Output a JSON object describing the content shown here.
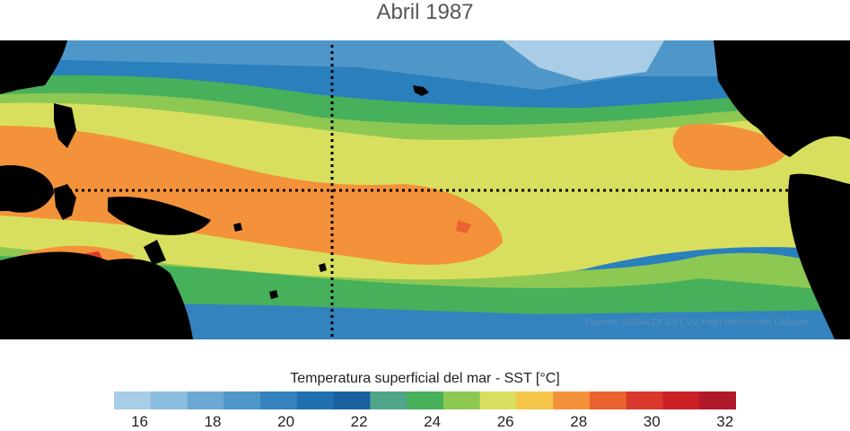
{
  "title": "Abril 1987",
  "source": "Fuente: NOAA OI SST V2 High Resolution Dataset",
  "colorbar": {
    "label": "Temperatura superficial del mar - SST  [°C]",
    "colors": [
      "#a9cde6",
      "#8bbddf",
      "#6ba9d4",
      "#4f97c9",
      "#3482be",
      "#1f70b0",
      "#19609e",
      "#4fa58a",
      "#47b05a",
      "#8dc853",
      "#d8df5e",
      "#f6c64a",
      "#f3923a",
      "#ea6230",
      "#d9382c",
      "#cc1f26",
      "#b2182b"
    ],
    "ticks": [
      "16",
      "18",
      "20",
      "22",
      "24",
      "26",
      "28",
      "30",
      "32"
    ]
  },
  "colors": {
    "land": "#000000",
    "cold": "#1f70b0",
    "mid": "#47b05a",
    "warm": "#d8df5e",
    "hot": "#f3923a",
    "hottest": "#ea6230"
  }
}
